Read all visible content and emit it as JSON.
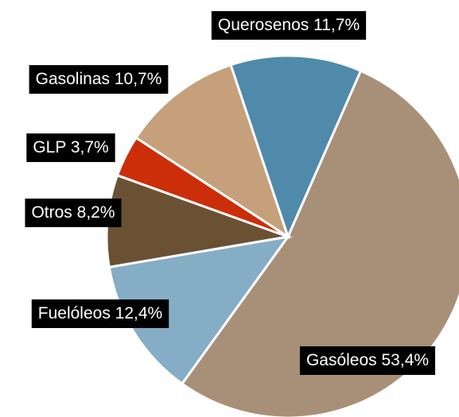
{
  "chart_data": {
    "type": "pie",
    "categories": [
      "Querosenos",
      "Gasóleos",
      "Fuelóleos",
      "Otros",
      "GLP",
      "Gasolinas"
    ],
    "values": [
      11.7,
      53.4,
      12.4,
      8.2,
      3.7,
      10.7
    ],
    "value_labels": [
      "11,7%",
      "53,4%",
      "12,4%",
      "8,2%",
      "3,7%",
      "10,7%"
    ],
    "colors": [
      "#4f8aab",
      "#a89078",
      "#85adc6",
      "#6b5134",
      "#cc2e0a",
      "#c6a07a"
    ]
  }
}
